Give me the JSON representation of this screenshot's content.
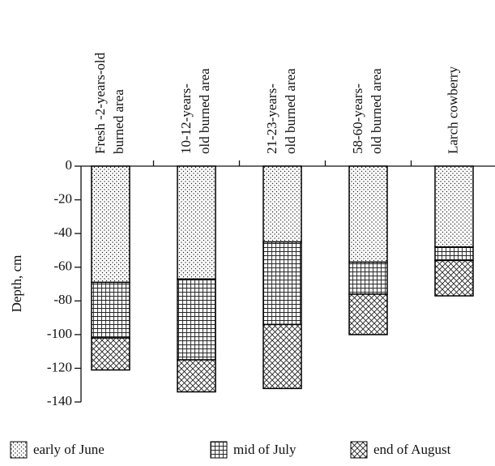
{
  "chart_data": {
    "type": "stacked-bar",
    "y_label": "Depth, cm",
    "categories": [
      [
        "Fresh -2-years-old",
        "burned area"
      ],
      [
        "10-12-years-",
        "old burned area"
      ],
      [
        "21-23-years-",
        "old burned area"
      ],
      [
        "58-60-years-",
        "old burned area"
      ],
      [
        "Larch cowberry"
      ]
    ],
    "series": [
      {
        "name": "early of June",
        "color": "#000000",
        "pattern": "dots",
        "values": [
          -69,
          -67,
          -45,
          -57,
          -48
        ]
      },
      {
        "name": "mid of July",
        "color": "#000000",
        "pattern": "grid",
        "values": [
          -33,
          -48,
          -49,
          -19,
          -8
        ]
      },
      {
        "name": "end of August",
        "color": "#000000",
        "pattern": "crosshatch",
        "values": [
          -19,
          -19,
          -38,
          -24,
          -21
        ]
      }
    ],
    "ylim": [
      0,
      -140
    ],
    "yticks": [
      0,
      -20,
      -40,
      -60,
      -80,
      -100,
      -120,
      -140
    ],
    "grid": false
  }
}
